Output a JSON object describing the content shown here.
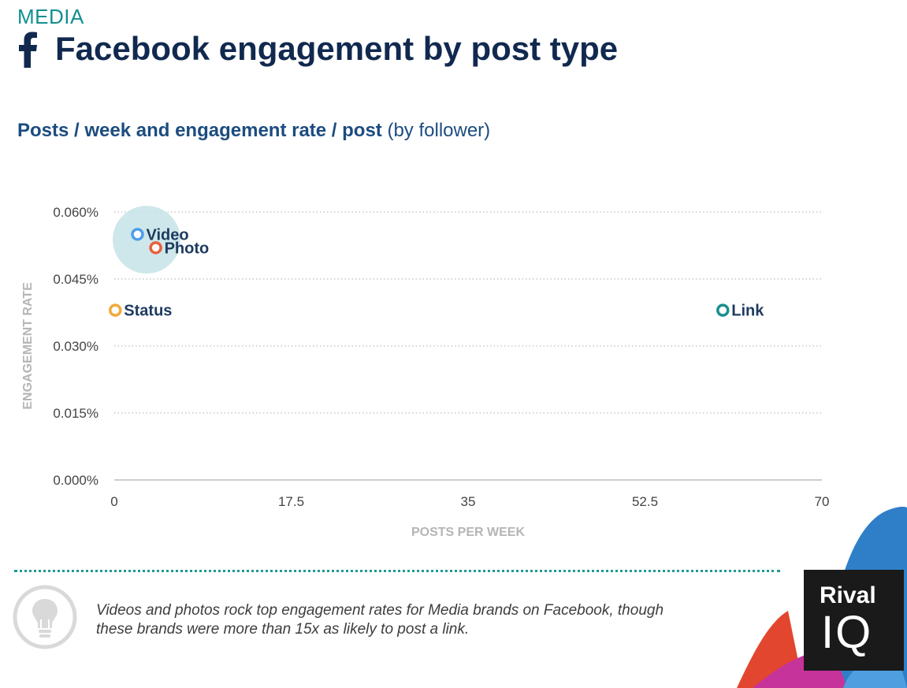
{
  "header": {
    "category": "MEDIA",
    "title": "Facebook engagement by post type",
    "subtitle_bold": "Posts / week and engagement rate / post",
    "subtitle_normal": "(by follower)"
  },
  "chart_data": {
    "type": "scatter",
    "xlabel": "POSTS PER WEEK",
    "ylabel": "ENGAGEMENT RATE",
    "xlim": [
      0,
      70
    ],
    "ylim": [
      0,
      0.06
    ],
    "x_ticks": [
      "0",
      "17.5",
      "35",
      "52.5",
      "70"
    ],
    "x_tick_values": [
      0,
      17.5,
      35,
      52.5,
      70
    ],
    "y_ticks": [
      "0.000%",
      "0.015%",
      "0.030%",
      "0.045%",
      "0.060%"
    ],
    "y_tick_values": [
      0,
      0.015,
      0.03,
      0.045,
      0.06
    ],
    "grid": "horizontal dotted",
    "highlight": {
      "x": 3.2,
      "y": 0.0538,
      "color": "#c6e3e6"
    },
    "points": [
      {
        "name": "Video",
        "x": 2.3,
        "y": 0.055,
        "color": "#4d9eea"
      },
      {
        "name": "Photo",
        "x": 4.1,
        "y": 0.052,
        "color": "#e8603c"
      },
      {
        "name": "Status",
        "x": 0.1,
        "y": 0.038,
        "color": "#f2a93b"
      },
      {
        "name": "Link",
        "x": 60.2,
        "y": 0.038,
        "color": "#1a8f8f"
      }
    ]
  },
  "footer": {
    "note": "Videos and photos rock top engagement rates for Media brands on Facebook, though these brands were more than 15x as likely to post a link.",
    "logo_line1": "Rival",
    "logo_line2": "IQ"
  },
  "colors": {
    "title": "#11294f",
    "accent": "#13908f",
    "subtitle": "#1c4c80",
    "axis_label": "#b5b5b5"
  }
}
